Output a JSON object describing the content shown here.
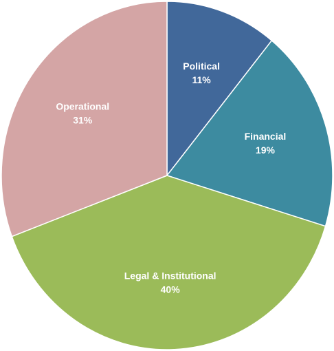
{
  "chart_data": {
    "type": "pie",
    "categories": [
      "Political",
      "Financial",
      "Legal & Institutional",
      "Operational"
    ],
    "values": [
      11,
      19,
      40,
      31
    ],
    "value_labels": [
      "11%",
      "19%",
      "40%",
      "31%"
    ],
    "colors": [
      "#41689a",
      "#3d8ba0",
      "#9bbb59",
      "#d4a5a5"
    ]
  }
}
